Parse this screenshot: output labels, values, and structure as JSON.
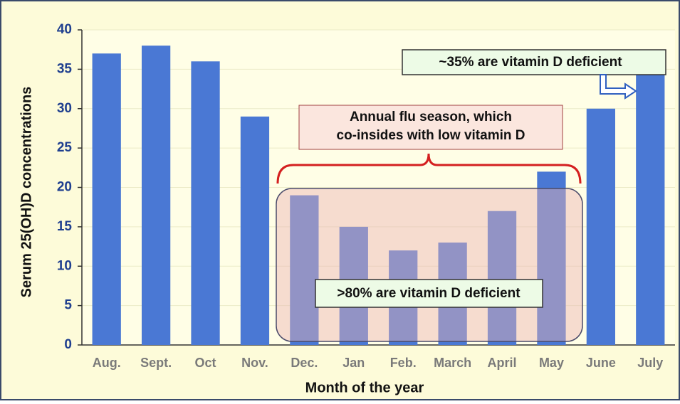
{
  "chart_data": {
    "type": "bar",
    "categories": [
      "Aug.",
      "Sept.",
      "Oct",
      "Nov.",
      "Dec.",
      "Jan",
      "Feb.",
      "March",
      "April",
      "May",
      "June",
      "July"
    ],
    "values": [
      37,
      38,
      36,
      29,
      19,
      15,
      12,
      13,
      17,
      22,
      30,
      35
    ],
    "color": "#4a78d4",
    "ylim": [
      0,
      40
    ],
    "yticks": [
      0,
      5,
      10,
      15,
      20,
      25,
      30,
      35,
      40
    ],
    "grid": true,
    "ylabel": "Serum 25(OH)D concentrations",
    "xlabel": "Month of the year",
    "annotations": [
      "~35% are vitamin D deficient",
      "Annual flu season, which",
      "co-insides with low vitamin D",
      ">80% are vitamin D deficient"
    ]
  }
}
